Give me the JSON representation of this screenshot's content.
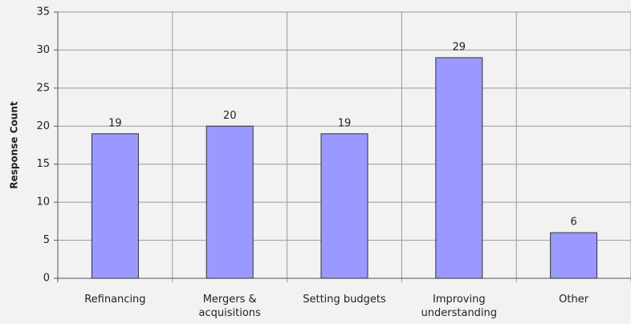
{
  "chart_data": {
    "type": "bar",
    "y_label": "Response Count",
    "categories": [
      "Refinancing",
      "Mergers & acquisitions",
      "Setting budgets",
      "Improving understanding",
      "Other"
    ],
    "values": [
      19,
      20,
      19,
      29,
      6
    ],
    "color": "#9999ff",
    "ylim": [
      0,
      35
    ],
    "yticks": [
      0,
      5,
      10,
      15,
      20,
      25,
      30,
      35
    ],
    "grid": true
  }
}
